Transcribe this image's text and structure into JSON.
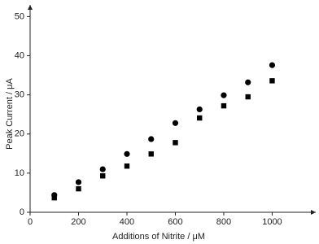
{
  "chart_data": {
    "type": "scatter",
    "x_label": "Additions of Nitrite / μM",
    "y_label": "Peak Current / μA",
    "x": [
      100,
      200,
      300,
      400,
      500,
      600,
      700,
      800,
      900,
      1000
    ],
    "series": [
      {
        "color": "#000000",
        "marker": "circle",
        "values": [
          4.4,
          7.7,
          11.0,
          14.9,
          18.7,
          22.8,
          26.3,
          29.9,
          33.2,
          37.6
        ]
      },
      {
        "color": "#000000",
        "marker": "square",
        "values": [
          3.7,
          6.0,
          9.3,
          11.8,
          14.9,
          17.8,
          24.1,
          27.2,
          29.5,
          33.6
        ]
      }
    ],
    "xlim": [
      0,
      1180
    ],
    "ylim": [
      0,
      53
    ],
    "xticks": [
      0,
      200,
      400,
      600,
      800,
      1000
    ],
    "yticks": [
      0,
      10,
      20,
      30,
      40,
      50
    ],
    "grid": false
  }
}
